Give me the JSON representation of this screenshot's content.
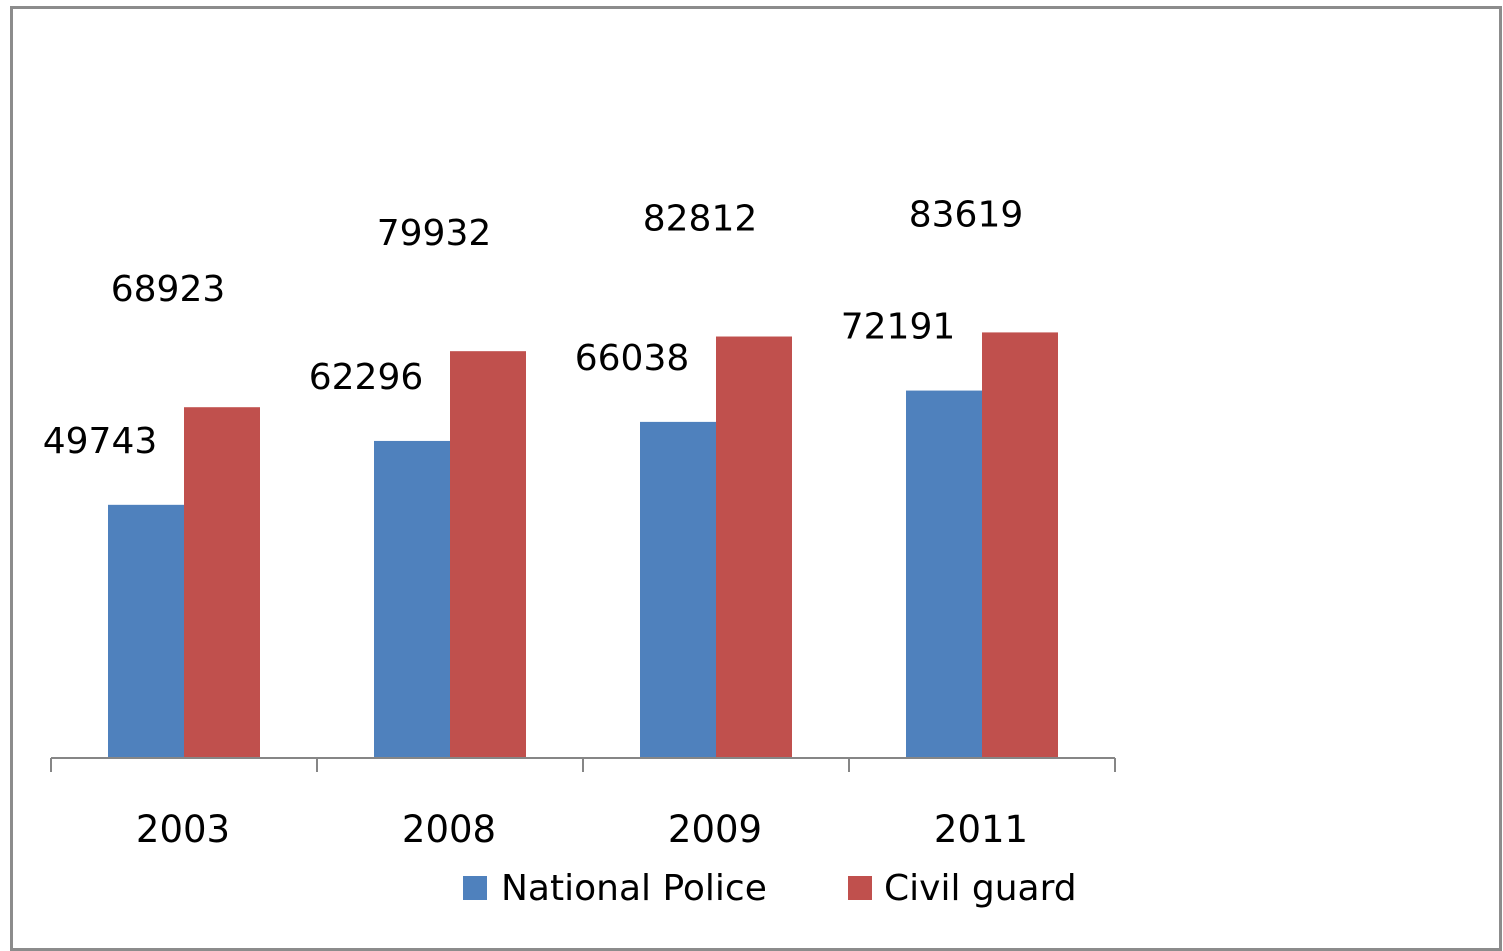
{
  "chart_data": {
    "type": "bar",
    "title": "",
    "xlabel": "",
    "ylabel": "",
    "categories": [
      "2003",
      "2008",
      "2009",
      "2011"
    ],
    "series": [
      {
        "name": "National Police",
        "values": [
          49743,
          62296,
          66038,
          72191
        ],
        "color": "#4f81bd"
      },
      {
        "name": "Civil guard",
        "values": [
          68923,
          79932,
          82812,
          83619
        ],
        "color": "#c0504d"
      }
    ],
    "ylim": [
      0,
      145000
    ],
    "grid": false,
    "legend_position": "bottom",
    "data_labels": true,
    "axis_color": "#868686"
  }
}
